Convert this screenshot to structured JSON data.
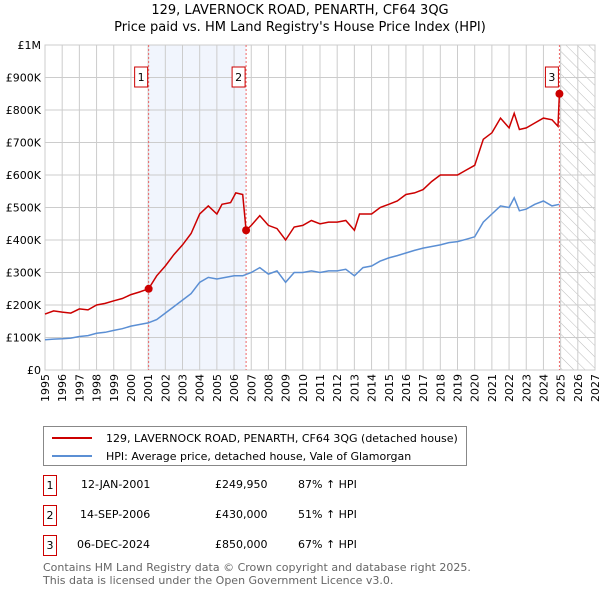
{
  "title": "129, LAVERNOCK ROAD, PENARTH, CF64 3QG",
  "subtitle": "Price paid vs. HM Land Registry's House Price Index (HPI)",
  "colors": {
    "property": "#cc0000",
    "hpi": "#5b8fd4"
  },
  "chart_data": {
    "type": "line",
    "xlim": [
      1995,
      2027
    ],
    "ylim": [
      0,
      1000000
    ],
    "x_ticks": [
      "1995",
      "1996",
      "1997",
      "1998",
      "1999",
      "2000",
      "2001",
      "2002",
      "2003",
      "2004",
      "2005",
      "2006",
      "2007",
      "2008",
      "2009",
      "2010",
      "2011",
      "2012",
      "2013",
      "2014",
      "2015",
      "2016",
      "2017",
      "2018",
      "2019",
      "2020",
      "2021",
      "2022",
      "2023",
      "2024",
      "2025",
      "2026",
      "2027"
    ],
    "y_ticks": [
      {
        "v": 0,
        "label": "£0"
      },
      {
        "v": 100000,
        "label": "£100K"
      },
      {
        "v": 200000,
        "label": "£200K"
      },
      {
        "v": 300000,
        "label": "£300K"
      },
      {
        "v": 400000,
        "label": "£400K"
      },
      {
        "v": 500000,
        "label": "£500K"
      },
      {
        "v": 600000,
        "label": "£600K"
      },
      {
        "v": 700000,
        "label": "£700K"
      },
      {
        "v": 800000,
        "label": "£800K"
      },
      {
        "v": 900000,
        "label": "£900K"
      },
      {
        "v": 1000000,
        "label": "£1M"
      }
    ],
    "grid": true,
    "shaded_range": [
      2001.03,
      2006.7
    ],
    "forecast_hatch_from": 2025,
    "series": [
      {
        "name": "129, LAVERNOCK ROAD, PENARTH, CF64 3QG (detached house)",
        "color": "#cc0000",
        "x": [
          1995,
          1995.5,
          1996,
          1996.5,
          1997,
          1997.5,
          1998,
          1998.5,
          1999,
          1999.5,
          2000,
          2000.5,
          2001.03,
          2001.5,
          2002,
          2002.5,
          2003,
          2003.5,
          2004,
          2004.5,
          2005,
          2005.3,
          2005.8,
          2006.1,
          2006.5,
          2006.7,
          2007,
          2007.5,
          2008,
          2008.5,
          2009,
          2009.5,
          2010,
          2010.5,
          2011,
          2011.5,
          2012,
          2012.5,
          2013,
          2013.3,
          2014,
          2014.5,
          2015,
          2015.5,
          2016,
          2016.5,
          2017,
          2017.5,
          2018,
          2018.5,
          2019,
          2019.5,
          2020,
          2020.5,
          2021,
          2021.5,
          2022,
          2022.3,
          2022.6,
          2023,
          2023.5,
          2024,
          2024.5,
          2024.85,
          2024.93
        ],
        "y": [
          172000,
          182000,
          178000,
          175000,
          188000,
          185000,
          200000,
          205000,
          213000,
          220000,
          232000,
          240000,
          249950,
          290000,
          320000,
          355000,
          385000,
          420000,
          480000,
          505000,
          480000,
          510000,
          515000,
          545000,
          540000,
          430000,
          445000,
          475000,
          445000,
          435000,
          400000,
          440000,
          445000,
          460000,
          450000,
          455000,
          455000,
          460000,
          430000,
          480000,
          480000,
          500000,
          510000,
          520000,
          540000,
          545000,
          555000,
          580000,
          600000,
          600000,
          600000,
          615000,
          630000,
          710000,
          730000,
          775000,
          745000,
          790000,
          740000,
          745000,
          760000,
          775000,
          770000,
          750000,
          850000
        ]
      },
      {
        "name": "HPI: Average price, detached house, Vale of Glamorgan",
        "color": "#5b8fd4",
        "x": [
          1995,
          1995.5,
          1996,
          1996.5,
          1997,
          1997.5,
          1998,
          1998.5,
          1999,
          1999.5,
          2000,
          2000.5,
          2001,
          2001.5,
          2002,
          2002.5,
          2003,
          2003.5,
          2004,
          2004.5,
          2005,
          2005.5,
          2006,
          2006.5,
          2007,
          2007.5,
          2008,
          2008.5,
          2009,
          2009.5,
          2010,
          2010.5,
          2011,
          2011.5,
          2012,
          2012.5,
          2013,
          2013.5,
          2014,
          2014.5,
          2015,
          2015.5,
          2016,
          2016.5,
          2017,
          2017.5,
          2018,
          2018.5,
          2019,
          2019.5,
          2020,
          2020.5,
          2021,
          2021.5,
          2022,
          2022.3,
          2022.6,
          2023,
          2023.5,
          2024,
          2024.5,
          2024.93
        ],
        "y": [
          93000,
          95000,
          96000,
          98000,
          103000,
          106000,
          113000,
          116000,
          122000,
          127000,
          135000,
          140000,
          145000,
          155000,
          175000,
          195000,
          215000,
          235000,
          270000,
          285000,
          280000,
          285000,
          290000,
          290000,
          300000,
          315000,
          295000,
          305000,
          270000,
          300000,
          300000,
          305000,
          300000,
          305000,
          305000,
          310000,
          290000,
          315000,
          320000,
          335000,
          345000,
          352000,
          360000,
          368000,
          375000,
          380000,
          385000,
          392000,
          395000,
          402000,
          410000,
          455000,
          480000,
          505000,
          500000,
          530000,
          490000,
          495000,
          510000,
          520000,
          505000,
          510000
        ]
      }
    ],
    "markers": [
      {
        "id": "1",
        "x": 2001.03,
        "y": 249950
      },
      {
        "id": "2",
        "x": 2006.7,
        "y": 430000
      },
      {
        "id": "3",
        "x": 2024.93,
        "y": 850000
      }
    ]
  },
  "legend": [
    {
      "label": "129, LAVERNOCK ROAD, PENARTH, CF64 3QG (detached house)"
    },
    {
      "label": "HPI: Average price, detached house, Vale of Glamorgan"
    }
  ],
  "transactions": [
    {
      "id": "1",
      "date": "12-JAN-2001",
      "price": "£249,950",
      "hpi": "87% ↑ HPI"
    },
    {
      "id": "2",
      "date": "14-SEP-2006",
      "price": "£430,000",
      "hpi": "51% ↑ HPI"
    },
    {
      "id": "3",
      "date": "06-DEC-2024",
      "price": "£850,000",
      "hpi": "67% ↑ HPI"
    }
  ],
  "footer": [
    "Contains HM Land Registry data © Crown copyright and database right 2025.",
    "This data is licensed under the Open Government Licence v3.0."
  ]
}
